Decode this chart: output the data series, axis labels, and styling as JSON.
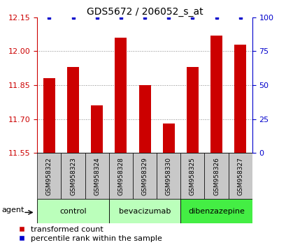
{
  "title": "GDS5672 / 206052_s_at",
  "samples": [
    "GSM958322",
    "GSM958323",
    "GSM958324",
    "GSM958328",
    "GSM958329",
    "GSM958330",
    "GSM958325",
    "GSM958326",
    "GSM958327"
  ],
  "bar_values": [
    11.88,
    11.93,
    11.76,
    12.06,
    11.85,
    11.68,
    11.93,
    12.07,
    12.03
  ],
  "percentile_values": [
    100,
    100,
    100,
    100,
    100,
    100,
    100,
    100,
    100
  ],
  "bar_color": "#cc0000",
  "dot_color": "#0000cc",
  "ylim_left": [
    11.55,
    12.15
  ],
  "ylim_right": [
    0,
    100
  ],
  "yticks_left": [
    11.55,
    11.7,
    11.85,
    12.0,
    12.15
  ],
  "yticks_right": [
    0,
    25,
    50,
    75,
    100
  ],
  "groups": [
    {
      "label": "control",
      "start": 0,
      "end": 3,
      "color": "#bbffbb"
    },
    {
      "label": "bevacizumab",
      "start": 3,
      "end": 6,
      "color": "#bbffbb"
    },
    {
      "label": "dibenzazepine",
      "start": 6,
      "end": 9,
      "color": "#44ee44"
    }
  ],
  "agent_label": "agent",
  "legend_bar_label": "transformed count",
  "legend_dot_label": "percentile rank within the sample",
  "bar_width": 0.5,
  "bar_color_r": "#cc0000",
  "dot_color_b": "#0000cc",
  "tick_label_color": "#cc0000",
  "right_axis_color": "#0000cc",
  "title_fontsize": 10,
  "axis_fontsize": 8,
  "legend_fontsize": 8,
  "group_label_fontsize": 8,
  "sample_label_fontsize": 6.5,
  "dotted_grid_color": "#888888",
  "sample_box_color": "#c8c8c8"
}
